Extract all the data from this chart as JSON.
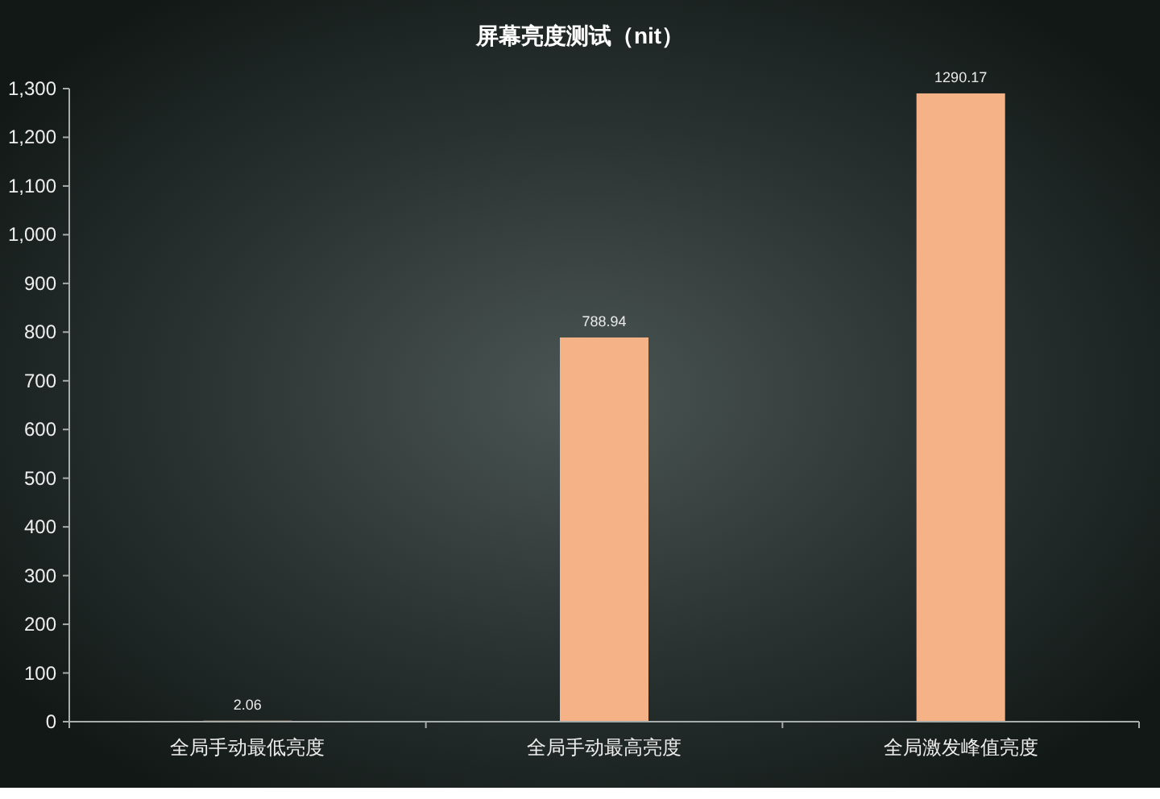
{
  "chart_data": {
    "type": "bar",
    "title": "屏幕亮度测试（nit）",
    "categories": [
      "全局手动最低亮度",
      "全局手动最高亮度",
      "全局激发峰值亮度"
    ],
    "values": [
      2.06,
      788.94,
      1290.17
    ],
    "color": "#f4b286",
    "data_labels": true,
    "ylim": [
      0,
      1300
    ],
    "yticks": [
      0,
      100,
      200,
      300,
      400,
      500,
      600,
      700,
      800,
      900,
      {
        "value": 1000,
        "label": "1,000"
      },
      {
        "value": 1100,
        "label": "1,100"
      },
      {
        "value": 1200,
        "label": "1,200"
      },
      {
        "value": 1300,
        "label": "1,300"
      }
    ],
    "grid": false
  }
}
